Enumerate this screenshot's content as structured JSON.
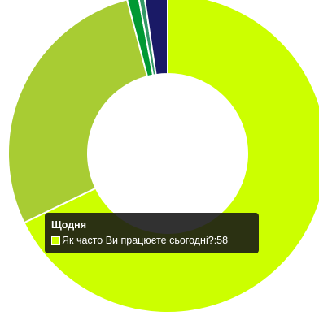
{
  "chart_data": {
    "type": "pie",
    "title": "",
    "legend": "none",
    "slices": [
      {
        "value": 58,
        "color": "#ccff00"
      },
      {
        "value": 24,
        "color": "#a8cc33"
      },
      {
        "value": 1,
        "color": "#009933"
      },
      {
        "value": 0.5,
        "color": "#339966"
      },
      {
        "value": 2,
        "color": "#1a1a66"
      }
    ],
    "donut": true,
    "start_at": "top"
  },
  "tooltip": {
    "title": "Щодня",
    "series_label": "Як часто Ви працюєте сьогодні?",
    "value": "58",
    "swatch_color": "#ccff00"
  }
}
